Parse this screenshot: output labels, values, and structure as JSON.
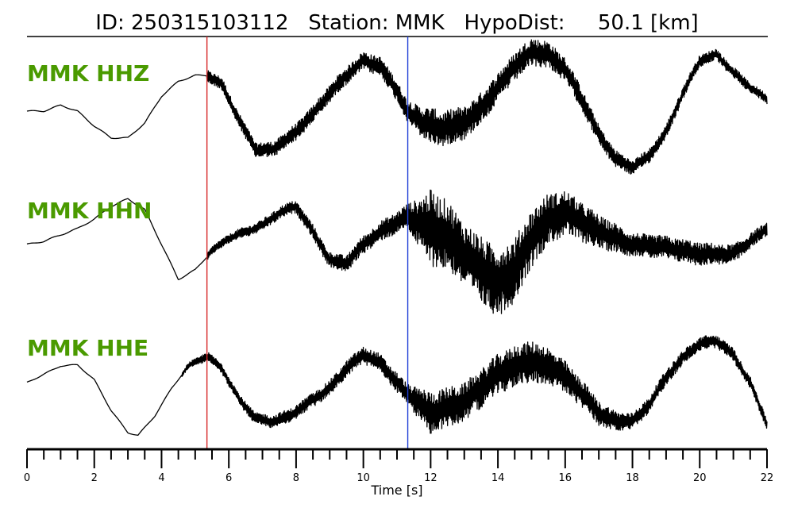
{
  "chart_data": {
    "type": "line",
    "title": "ID: 250315103112   Station: MMK   HypoDist:     50.1 [km]",
    "xlabel": "Time [s]",
    "xlim": [
      0,
      22
    ],
    "x_ticks": [
      "0",
      "2",
      "4",
      "6",
      "8",
      "10",
      "12",
      "14",
      "16",
      "18",
      "20",
      "22"
    ],
    "minor_tick_step": 0.5,
    "grid": false,
    "colors": {
      "trace": "#000000",
      "channel_label": "#4a9a00",
      "p_pick": "#d62728",
      "s_pick": "#1f3fd6"
    },
    "picks": [
      {
        "name": "P",
        "x": 5.35,
        "color": "#d62728"
      },
      {
        "name": "S",
        "x": 11.32,
        "color": "#1f3fd6"
      }
    ],
    "series": [
      {
        "name": "MMK HHZ",
        "noise_onset_s": 5.35,
        "envelope": {
          "x": [
            0,
            0.5,
            1,
            1.5,
            2,
            2.5,
            3,
            3.5,
            4,
            4.5,
            5,
            5.35,
            5.8,
            6.3,
            6.8,
            7.3,
            8,
            8.5,
            9,
            9.5,
            10,
            10.5,
            11,
            11.3,
            11.8,
            12.3,
            13,
            13.5,
            14,
            14.5,
            15,
            15.5,
            16,
            16.5,
            17,
            17.5,
            18,
            18.5,
            19,
            19.5,
            20,
            20.5,
            21,
            21.5,
            22
          ],
          "y": [
            0.0,
            0.0,
            0.1,
            0.0,
            -0.25,
            -0.45,
            -0.45,
            -0.2,
            0.25,
            0.5,
            0.6,
            0.6,
            0.45,
            -0.15,
            -0.65,
            -0.65,
            -0.35,
            -0.05,
            0.3,
            0.6,
            0.85,
            0.75,
            0.35,
            0.0,
            -0.2,
            -0.3,
            -0.2,
            0.05,
            0.4,
            0.75,
            1.0,
            0.95,
            0.7,
            0.2,
            -0.4,
            -0.8,
            -0.95,
            -0.75,
            -0.35,
            0.3,
            0.85,
            0.95,
            0.65,
            0.4,
            0.2
          ]
        },
        "noise_amplitude": {
          "x": [
            5.35,
            8,
            10,
            11.3,
            12,
            13,
            14,
            15,
            16,
            18,
            20,
            22
          ],
          "y": [
            0.1,
            0.14,
            0.15,
            0.18,
            0.3,
            0.28,
            0.24,
            0.24,
            0.2,
            0.12,
            0.1,
            0.08
          ]
        }
      },
      {
        "name": "MMK HHN",
        "noise_onset_s": 5.35,
        "envelope": {
          "x": [
            0,
            0.5,
            1,
            1.5,
            2,
            2.5,
            3,
            3.5,
            4,
            4.5,
            5,
            5.5,
            6,
            6.5,
            7,
            7.5,
            8,
            8.5,
            9,
            9.5,
            10,
            10.5,
            11,
            11.3,
            11.8,
            12.5,
            13,
            13.5,
            14,
            14.5,
            15,
            15.5,
            16,
            16.5,
            17,
            17.5,
            18,
            19,
            20,
            21,
            22
          ],
          "y": [
            0.0,
            0.05,
            0.15,
            0.25,
            0.4,
            0.6,
            0.72,
            0.55,
            0.0,
            -0.55,
            -0.4,
            -0.1,
            0.1,
            0.2,
            0.3,
            0.5,
            0.6,
            0.2,
            -0.25,
            -0.3,
            0.0,
            0.2,
            0.35,
            0.45,
            0.3,
            0.15,
            -0.15,
            -0.4,
            -0.6,
            -0.4,
            0.1,
            0.4,
            0.5,
            0.35,
            0.2,
            0.1,
            0.0,
            -0.05,
            -0.15,
            -0.15,
            0.25
          ]
        },
        "noise_amplitude": {
          "x": [
            5.35,
            8,
            10,
            11.3,
            12,
            13,
            14,
            15,
            16,
            18,
            20,
            22
          ],
          "y": [
            0.06,
            0.1,
            0.14,
            0.18,
            0.6,
            0.5,
            0.55,
            0.45,
            0.35,
            0.18,
            0.18,
            0.1
          ]
        }
      },
      {
        "name": "MMK HHE",
        "noise_onset_s": 4.6,
        "envelope": {
          "x": [
            0,
            0.5,
            1,
            1.5,
            2,
            2.5,
            3,
            3.3,
            3.8,
            4.3,
            4.8,
            5.35,
            5.8,
            6.3,
            6.8,
            7.3,
            7.8,
            8.3,
            9,
            9.5,
            10,
            10.5,
            11,
            11.3,
            12,
            13,
            13.5,
            14,
            14.5,
            15,
            15.5,
            16,
            16.5,
            17,
            17.5,
            18,
            18.5,
            19,
            19.5,
            20,
            20.5,
            21,
            21.5,
            22
          ],
          "y": [
            0.0,
            0.15,
            0.3,
            0.32,
            0.05,
            -0.5,
            -0.9,
            -0.95,
            -0.6,
            -0.1,
            0.3,
            0.48,
            0.25,
            -0.3,
            -0.65,
            -0.7,
            -0.6,
            -0.4,
            -0.1,
            0.25,
            0.5,
            0.35,
            0.0,
            -0.2,
            -0.55,
            -0.35,
            -0.1,
            0.15,
            0.3,
            0.38,
            0.3,
            0.1,
            -0.2,
            -0.55,
            -0.7,
            -0.7,
            -0.4,
            0.1,
            0.45,
            0.7,
            0.75,
            0.5,
            0.0,
            -0.75
          ]
        },
        "noise_amplitude": {
          "x": [
            4.6,
            5.35,
            8,
            10,
            11.3,
            12,
            13,
            14,
            15,
            16,
            18,
            20,
            22
          ],
          "y": [
            0.04,
            0.08,
            0.12,
            0.15,
            0.18,
            0.38,
            0.34,
            0.36,
            0.38,
            0.28,
            0.15,
            0.12,
            0.1
          ]
        }
      }
    ]
  }
}
